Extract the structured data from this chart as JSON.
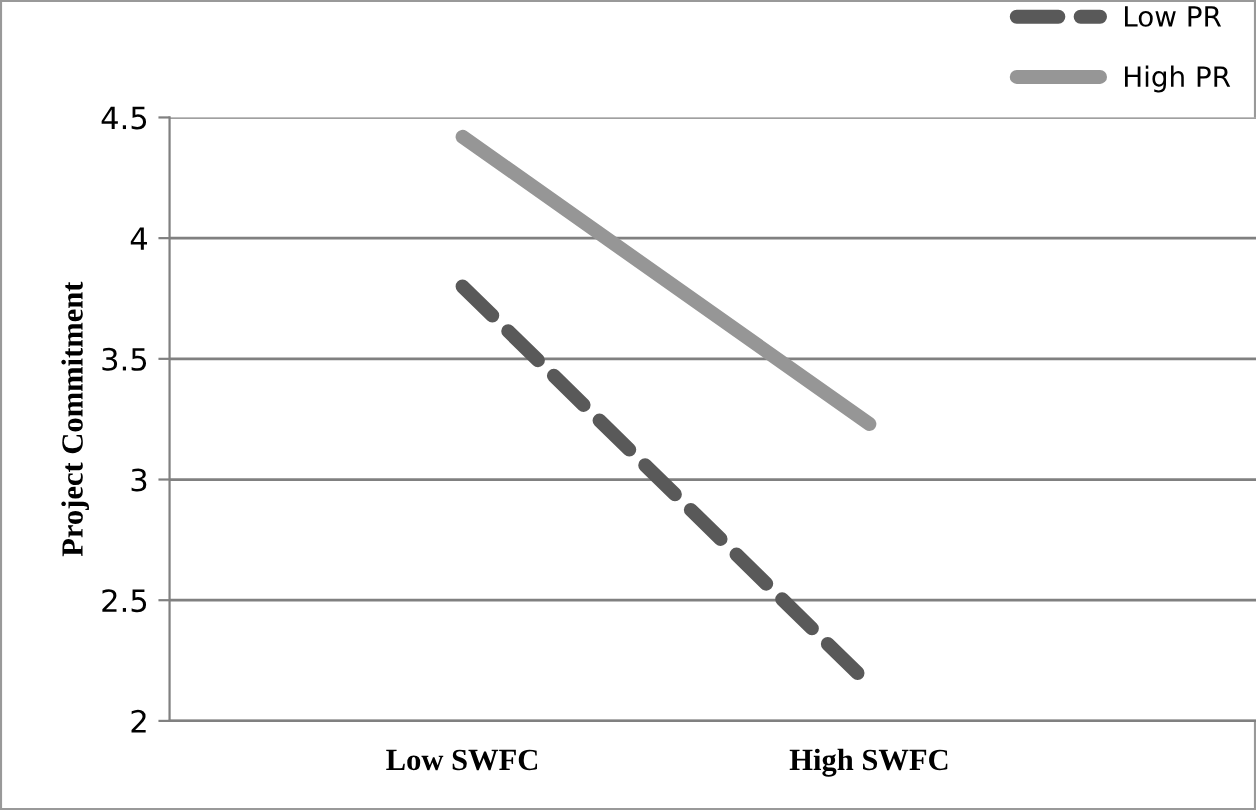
{
  "chart_data": {
    "type": "line",
    "ylabel": "Project Commitment",
    "categories": [
      "Low SWFC",
      "High SWFC"
    ],
    "series": [
      {
        "name": "Low PR",
        "color": "#595959",
        "values": [
          3.8,
          2.15
        ],
        "line_style": "dashed"
      },
      {
        "name": "High PR",
        "color": "#969696",
        "values": [
          4.42,
          3.23
        ],
        "line_style": "solid"
      }
    ],
    "ylim": [
      2,
      4.5
    ],
    "yticks": [
      2,
      2.5,
      3,
      3.5,
      4,
      4.5
    ],
    "grid": "y",
    "legend": "top right",
    "marker": "none"
  }
}
